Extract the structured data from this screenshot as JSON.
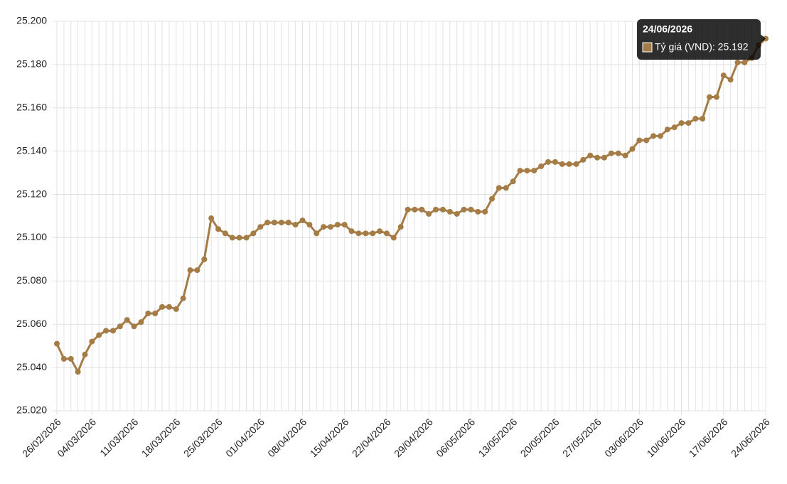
{
  "chart_data": {
    "type": "line",
    "categories": [
      "26/02/2026",
      null,
      null,
      null,
      null,
      "04/03/2026",
      null,
      null,
      null,
      null,
      null,
      "11/03/2026",
      null,
      null,
      null,
      null,
      null,
      "18/03/2026",
      null,
      null,
      null,
      null,
      null,
      "25/03/2026",
      null,
      null,
      null,
      null,
      null,
      "01/04/2026",
      null,
      null,
      null,
      null,
      null,
      "08/04/2026",
      null,
      null,
      null,
      null,
      null,
      "15/04/2026",
      null,
      null,
      null,
      null,
      null,
      "22/04/2026",
      null,
      null,
      null,
      null,
      null,
      "29/04/2026",
      null,
      null,
      null,
      null,
      null,
      "06/05/2026",
      null,
      null,
      null,
      null,
      null,
      "13/05/2026",
      null,
      null,
      null,
      null,
      null,
      "20/05/2026",
      null,
      null,
      null,
      null,
      null,
      "27/05/2026",
      null,
      null,
      null,
      null,
      null,
      "03/06/2026",
      null,
      null,
      null,
      null,
      null,
      "10/06/2026",
      null,
      null,
      null,
      null,
      null,
      "17/06/2026",
      null,
      null,
      null,
      null,
      null,
      "24/06/2026"
    ],
    "series": [
      {
        "color": "#a57c45",
        "values": [
          25051,
          25044,
          25044,
          25038,
          25046,
          25052,
          25055,
          25057,
          25057,
          25059,
          25062,
          25059,
          25061,
          25065,
          25065,
          25068,
          25068,
          25067,
          25072,
          25085,
          25085,
          25090,
          25109,
          25104,
          25102,
          25100,
          25100,
          25100,
          25102,
          25105,
          25107,
          25107,
          25107,
          25107,
          25106,
          25108,
          25106,
          25102,
          25105,
          25105,
          25106,
          25106,
          25103,
          25102,
          25102,
          25102,
          25103,
          25102,
          25100,
          25105,
          25113,
          25113,
          25113,
          25111,
          25113,
          25113,
          25112,
          25111,
          25113,
          25113,
          25112,
          25112,
          25118,
          25123,
          25123,
          25126,
          25131,
          25131,
          25131,
          25133,
          25135,
          25135,
          25134,
          25134,
          25134,
          25136,
          25138,
          25137,
          25137,
          25139,
          25139,
          25138,
          25141,
          25145,
          25145,
          25147,
          25147,
          25150,
          25151,
          25153,
          25153,
          25155,
          25155,
          25165,
          25165,
          25175,
          25173,
          25181,
          25181,
          25183,
          25189,
          25192
        ]
      }
    ],
    "ylim": [
      25020,
      25200
    ],
    "yticks": [
      {
        "value": 25020,
        "label": "25.020"
      },
      {
        "value": 25040,
        "label": "25.040"
      },
      {
        "value": 25060,
        "label": "25.060"
      },
      {
        "value": 25080,
        "label": "25.080"
      },
      {
        "value": 25100,
        "label": "25.100"
      },
      {
        "value": 25120,
        "label": "25.120"
      },
      {
        "value": 25140,
        "label": "25.140"
      },
      {
        "value": 25160,
        "label": "25.160"
      },
      {
        "value": 25180,
        "label": "25.180"
      },
      {
        "value": 25200,
        "label": "25.200"
      }
    ],
    "grid": true,
    "tooltip": {
      "index": 101,
      "label": "Tỷ giá (VND): 25.192"
    }
  }
}
